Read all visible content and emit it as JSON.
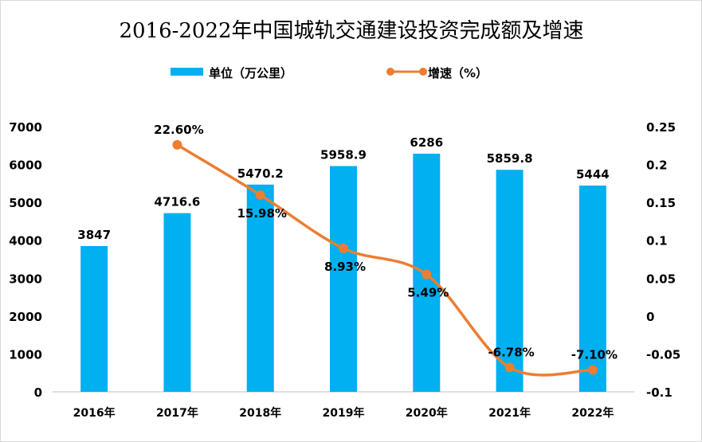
{
  "chart_data": {
    "type": "bar+line",
    "title": "2016-2022年中国城轨交通建设投资完成额及增速",
    "categories": [
      "2016年",
      "2017年",
      "2018年",
      "2019年",
      "2020年",
      "2021年",
      "2022年"
    ],
    "series": [
      {
        "name": "单位（万公里）",
        "type": "bar",
        "axis": "left",
        "color": "#00b0f0",
        "values": [
          3847,
          4716.6,
          5470.2,
          5958.9,
          6286,
          5859.8,
          5444
        ],
        "labels": [
          "3847",
          "4716.6",
          "5470.2",
          "5958.9",
          "6286",
          "5859.8",
          "5444"
        ]
      },
      {
        "name": "增速（%）",
        "type": "line",
        "axis": "right",
        "color": "#ed7d31",
        "smooth": true,
        "values": [
          null,
          0.226,
          0.1598,
          0.0893,
          0.0549,
          -0.0678,
          -0.071
        ],
        "labels": [
          "",
          "22.60%",
          "15.98%",
          "8.93%",
          "5.49%",
          "-6.78%",
          "-7.10%"
        ]
      }
    ],
    "y_left": {
      "range": [
        0,
        7000
      ],
      "ticks": [
        "0",
        "1000",
        "2000",
        "3000",
        "4000",
        "5000",
        "6000",
        "7000"
      ]
    },
    "y_right": {
      "range": [
        -0.1,
        0.25
      ],
      "ticks": [
        "-0.1",
        "-0.05",
        "0",
        "0.05",
        "0.1",
        "0.15",
        "0.2",
        "0.25"
      ]
    },
    "grid": false,
    "legend": "top"
  }
}
